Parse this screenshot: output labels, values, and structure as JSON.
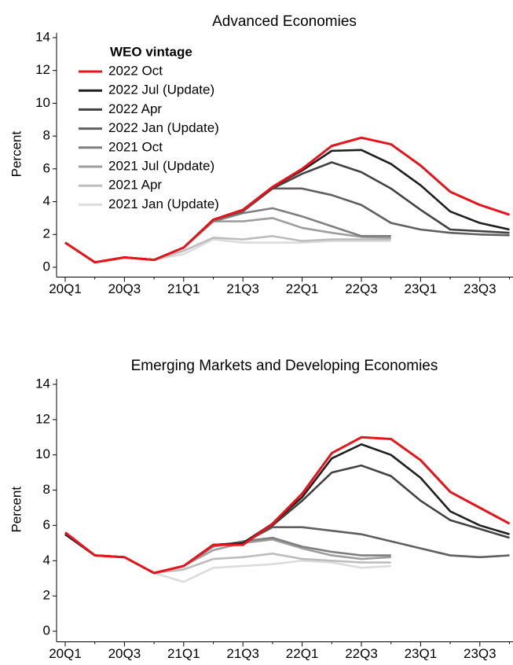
{
  "chart_data": [
    {
      "type": "line",
      "title": "Advanced Economies",
      "ylabel": "Percent",
      "legend_title": "WEO vintage",
      "legend": "upper left",
      "categories": [
        "20Q1",
        null,
        "20Q3",
        null,
        "21Q1",
        null,
        "21Q3",
        null,
        "22Q1",
        null,
        "22Q3",
        null,
        "23Q1",
        null,
        "23Q3",
        null
      ],
      "ylim": [
        -0.6,
        14.4
      ],
      "yticks": [
        0,
        2,
        4,
        6,
        8,
        10,
        12,
        14
      ],
      "series": [
        {
          "name": "2021 Jan (Update)",
          "color": "#dcdcdc",
          "values": [
            1.5,
            0.3,
            0.6,
            0.45,
            0.8,
            1.7,
            1.5,
            1.5,
            1.5,
            1.6,
            1.6,
            1.6,
            null,
            null,
            null,
            null
          ]
        },
        {
          "name": "2021 Apr",
          "color": "#bdbdbd",
          "values": [
            1.5,
            0.3,
            0.6,
            0.45,
            1.0,
            1.8,
            1.7,
            1.9,
            1.6,
            1.7,
            1.7,
            1.7,
            null,
            null,
            null,
            null
          ]
        },
        {
          "name": "2021 Jul (Update)",
          "color": "#9e9e9e",
          "values": [
            1.5,
            0.3,
            0.6,
            0.45,
            1.2,
            2.8,
            2.8,
            3.0,
            2.4,
            2.1,
            1.85,
            1.8,
            null,
            null,
            null,
            null
          ]
        },
        {
          "name": "2021 Oct",
          "color": "#7f7f7f",
          "values": [
            1.5,
            0.3,
            0.6,
            0.45,
            1.2,
            2.8,
            3.3,
            3.6,
            3.1,
            2.5,
            1.9,
            1.9,
            null,
            null,
            null,
            null
          ]
        },
        {
          "name": "2022 Jan (Update)",
          "color": "#5f5f5f",
          "values": [
            1.5,
            0.3,
            0.6,
            0.45,
            1.2,
            2.9,
            3.4,
            4.8,
            4.8,
            4.4,
            3.8,
            2.7,
            2.3,
            2.1,
            2.0,
            1.95
          ]
        },
        {
          "name": "2022 Apr",
          "color": "#424242",
          "values": [
            1.5,
            0.3,
            0.6,
            0.45,
            1.2,
            2.9,
            3.5,
            4.8,
            5.7,
            6.4,
            5.8,
            4.8,
            3.5,
            2.3,
            2.2,
            2.1
          ]
        },
        {
          "name": "2022 Jul (Update)",
          "color": "#1e1e1e",
          "values": [
            1.5,
            0.3,
            0.6,
            0.45,
            1.2,
            2.9,
            3.5,
            4.9,
            5.9,
            7.1,
            7.15,
            6.3,
            5.0,
            3.4,
            2.7,
            2.3
          ]
        },
        {
          "name": "2022 Oct",
          "color": "#e8141b",
          "values": [
            1.5,
            0.3,
            0.6,
            0.45,
            1.2,
            2.9,
            3.5,
            4.9,
            6.0,
            7.4,
            7.9,
            7.5,
            6.2,
            4.6,
            3.8,
            3.2
          ]
        }
      ]
    },
    {
      "type": "line",
      "title": "Emerging Markets and Developing Economies",
      "ylabel": "Percent",
      "categories": [
        "20Q1",
        null,
        "20Q3",
        null,
        "21Q1",
        null,
        "21Q3",
        null,
        "22Q1",
        null,
        "22Q3",
        null,
        "23Q1",
        null,
        "23Q3",
        null
      ],
      "ylim": [
        -0.6,
        14.4
      ],
      "yticks": [
        0,
        2,
        4,
        6,
        8,
        10,
        12,
        14
      ],
      "series": [
        {
          "color": "#dcdcdc",
          "values": [
            5.5,
            4.3,
            4.2,
            3.3,
            2.8,
            3.6,
            3.7,
            3.8,
            4.0,
            3.9,
            3.6,
            3.7,
            null,
            null,
            null,
            null
          ]
        },
        {
          "color": "#bdbdbd",
          "values": [
            5.5,
            4.3,
            4.2,
            3.3,
            3.5,
            4.1,
            4.2,
            4.4,
            4.1,
            4.0,
            3.9,
            3.9,
            null,
            null,
            null,
            null
          ]
        },
        {
          "color": "#9e9e9e",
          "values": [
            5.5,
            4.3,
            4.2,
            3.3,
            3.7,
            4.6,
            5.0,
            5.2,
            4.7,
            4.3,
            4.1,
            4.2,
            null,
            null,
            null,
            null
          ]
        },
        {
          "color": "#7f7f7f",
          "values": [
            5.5,
            4.3,
            4.2,
            3.3,
            3.7,
            4.8,
            5.1,
            5.3,
            4.8,
            4.5,
            4.3,
            4.3,
            null,
            null,
            null,
            null
          ]
        },
        {
          "color": "#5f5f5f",
          "values": [
            5.5,
            4.3,
            4.2,
            3.3,
            3.7,
            4.9,
            5.0,
            5.9,
            5.9,
            5.7,
            5.5,
            5.1,
            4.7,
            4.3,
            4.2,
            4.3
          ]
        },
        {
          "color": "#424242",
          "values": [
            5.5,
            4.3,
            4.2,
            3.3,
            3.7,
            4.9,
            5.0,
            6.0,
            7.4,
            9.0,
            9.4,
            8.8,
            7.4,
            6.3,
            5.8,
            5.3
          ]
        },
        {
          "color": "#1e1e1e",
          "values": [
            5.5,
            4.3,
            4.2,
            3.3,
            3.7,
            4.9,
            5.0,
            6.1,
            7.6,
            9.8,
            10.6,
            10.0,
            8.7,
            6.8,
            6.0,
            5.5
          ]
        },
        {
          "color": "#e8141b",
          "values": [
            5.6,
            4.3,
            4.2,
            3.3,
            3.7,
            4.9,
            4.9,
            6.1,
            7.8,
            10.1,
            11.0,
            10.9,
            9.7,
            7.9,
            7.0,
            6.1
          ]
        }
      ]
    }
  ]
}
